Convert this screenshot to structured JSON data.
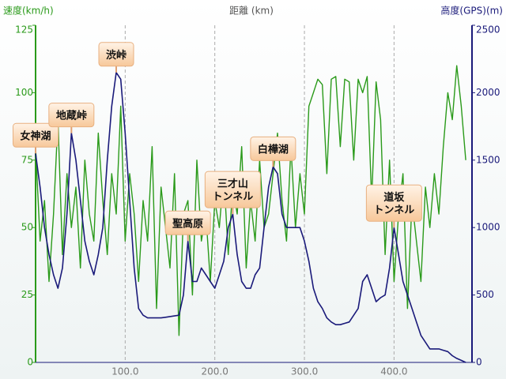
{
  "chart_data": {
    "type": "line",
    "xlabel": "距離 (km)",
    "ylabel": "速度(km/h)",
    "y2label": "高度(GPS)(m)",
    "x": [
      0,
      5,
      10,
      15,
      20,
      25,
      30,
      35,
      40,
      45,
      50,
      55,
      60,
      65,
      70,
      75,
      80,
      85,
      90,
      95,
      100,
      105,
      110,
      115,
      120,
      125,
      130,
      135,
      140,
      145,
      150,
      155,
      160,
      165,
      170,
      175,
      180,
      185,
      190,
      195,
      200,
      205,
      210,
      215,
      220,
      225,
      230,
      235,
      240,
      245,
      250,
      255,
      260,
      265,
      270,
      275,
      280,
      285,
      290,
      295,
      300,
      305,
      310,
      315,
      320,
      325,
      330,
      335,
      340,
      345,
      350,
      355,
      360,
      365,
      370,
      375,
      380,
      385,
      390,
      395,
      400,
      405,
      410,
      415,
      420,
      425,
      430,
      435,
      440,
      445,
      450,
      455,
      460,
      465,
      470,
      475,
      480
    ],
    "series": [
      {
        "color": "#2a9a1a",
        "axis": "y",
        "values": [
          80,
          45,
          60,
          30,
          55,
          90,
          40,
          70,
          50,
          65,
          35,
          75,
          55,
          45,
          85,
          60,
          40,
          70,
          55,
          95,
          45,
          70,
          55,
          30,
          60,
          45,
          80,
          20,
          65,
          50,
          35,
          70,
          10,
          55,
          60,
          25,
          75,
          45,
          55,
          30,
          60,
          50,
          70,
          40,
          65,
          55,
          80,
          35,
          60,
          45,
          75,
          50,
          55,
          70,
          85,
          60,
          45,
          80,
          50,
          70,
          55,
          95,
          100,
          105,
          103,
          70,
          105,
          106,
          80,
          105,
          104,
          75,
          105,
          100,
          106,
          60,
          104,
          90,
          40,
          75,
          30,
          55,
          70,
          20,
          60,
          45,
          30,
          65,
          50,
          70,
          55,
          80,
          100,
          90,
          110,
          95,
          75
        ]
      },
      {
        "color": "#1a1a7a",
        "axis": "y2",
        "values": [
          1550,
          1300,
          1000,
          800,
          650,
          550,
          700,
          1100,
          1700,
          1500,
          1200,
          900,
          750,
          650,
          800,
          1000,
          1500,
          1900,
          2150,
          2100,
          1700,
          1200,
          700,
          400,
          350,
          330,
          330,
          330,
          330,
          335,
          340,
          345,
          350,
          500,
          900,
          600,
          600,
          700,
          650,
          600,
          550,
          650,
          750,
          1000,
          1100,
          800,
          600,
          550,
          550,
          650,
          700,
          1000,
          1300,
          1450,
          1400,
          1100,
          1000,
          1000,
          1000,
          1000,
          900,
          750,
          550,
          450,
          400,
          330,
          300,
          280,
          280,
          290,
          300,
          350,
          400,
          600,
          650,
          550,
          450,
          480,
          500,
          700,
          1000,
          800,
          600,
          500,
          400,
          300,
          200,
          150,
          100,
          100,
          100,
          90,
          80,
          50,
          30,
          15,
          0
        ]
      }
    ],
    "xlim": [
      0,
      487
    ],
    "ylim": [
      0,
      125
    ],
    "y2lim": [
      0,
      2500
    ],
    "xticks": [
      {
        "value": 100,
        "label": "100.0"
      },
      {
        "value": 200,
        "label": "200.0"
      },
      {
        "value": 300,
        "label": "300.0"
      },
      {
        "value": 400,
        "label": "400.0"
      }
    ],
    "yticks": [
      0,
      25,
      50,
      75,
      100,
      125
    ],
    "y2ticks": [
      0,
      500,
      1000,
      1500,
      2000,
      2500
    ],
    "grid": true,
    "annotations": [
      {
        "text": "女神湖",
        "x": 0,
        "y": 1550
      },
      {
        "text": "地蔵峠",
        "x": 40,
        "y": 1700
      },
      {
        "text": "渋峠",
        "x": 90,
        "y": 2150
      },
      {
        "text": "聖高原",
        "x": 170,
        "y": 900
      },
      {
        "text": "三才山\nトンネル",
        "x": 220,
        "y": 1100
      },
      {
        "text": "白樺湖",
        "x": 265,
        "y": 1450
      },
      {
        "text": "道坂\nトンネル",
        "x": 400,
        "y": 1000
      }
    ]
  }
}
